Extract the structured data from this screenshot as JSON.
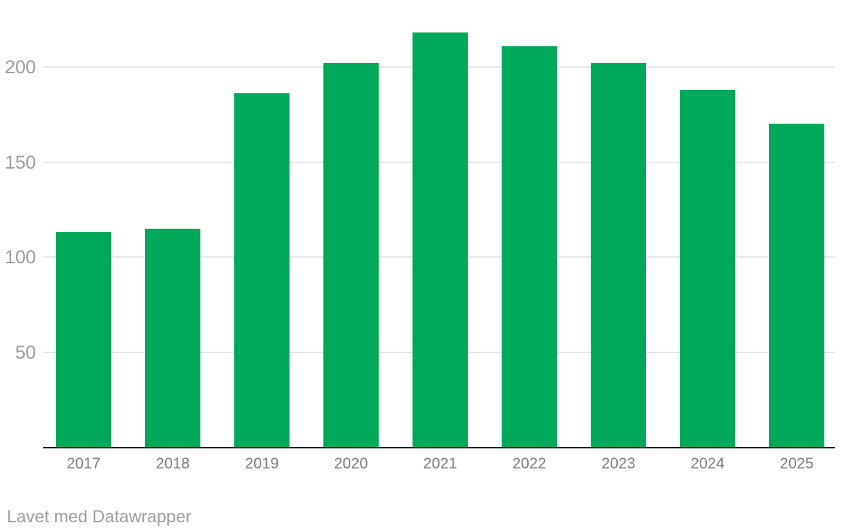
{
  "chart_data": {
    "type": "bar",
    "title": "",
    "xlabel": "",
    "ylabel": "",
    "categories": [
      "2017",
      "2018",
      "2019",
      "2020",
      "2021",
      "2022",
      "2023",
      "2024",
      "2025"
    ],
    "values": [
      113,
      115,
      186,
      202,
      218,
      211,
      202,
      188,
      170
    ],
    "ylim": [
      0,
      225
    ],
    "yticks": [
      50,
      100,
      150,
      200
    ],
    "grid": "horizontal-only",
    "legend": "none",
    "bar_orientation": "vertical"
  },
  "footer": {
    "attribution": "Lavet med Datawrapper"
  },
  "colors": {
    "bar": "#00a859",
    "gridline": "#e6e6e6",
    "axis_line": "#161616",
    "y_tick_label": "#9c9c9c",
    "x_tick_label": "#7d7d7d",
    "attribution_text": "#9e9e9e",
    "background": "#ffffff"
  }
}
